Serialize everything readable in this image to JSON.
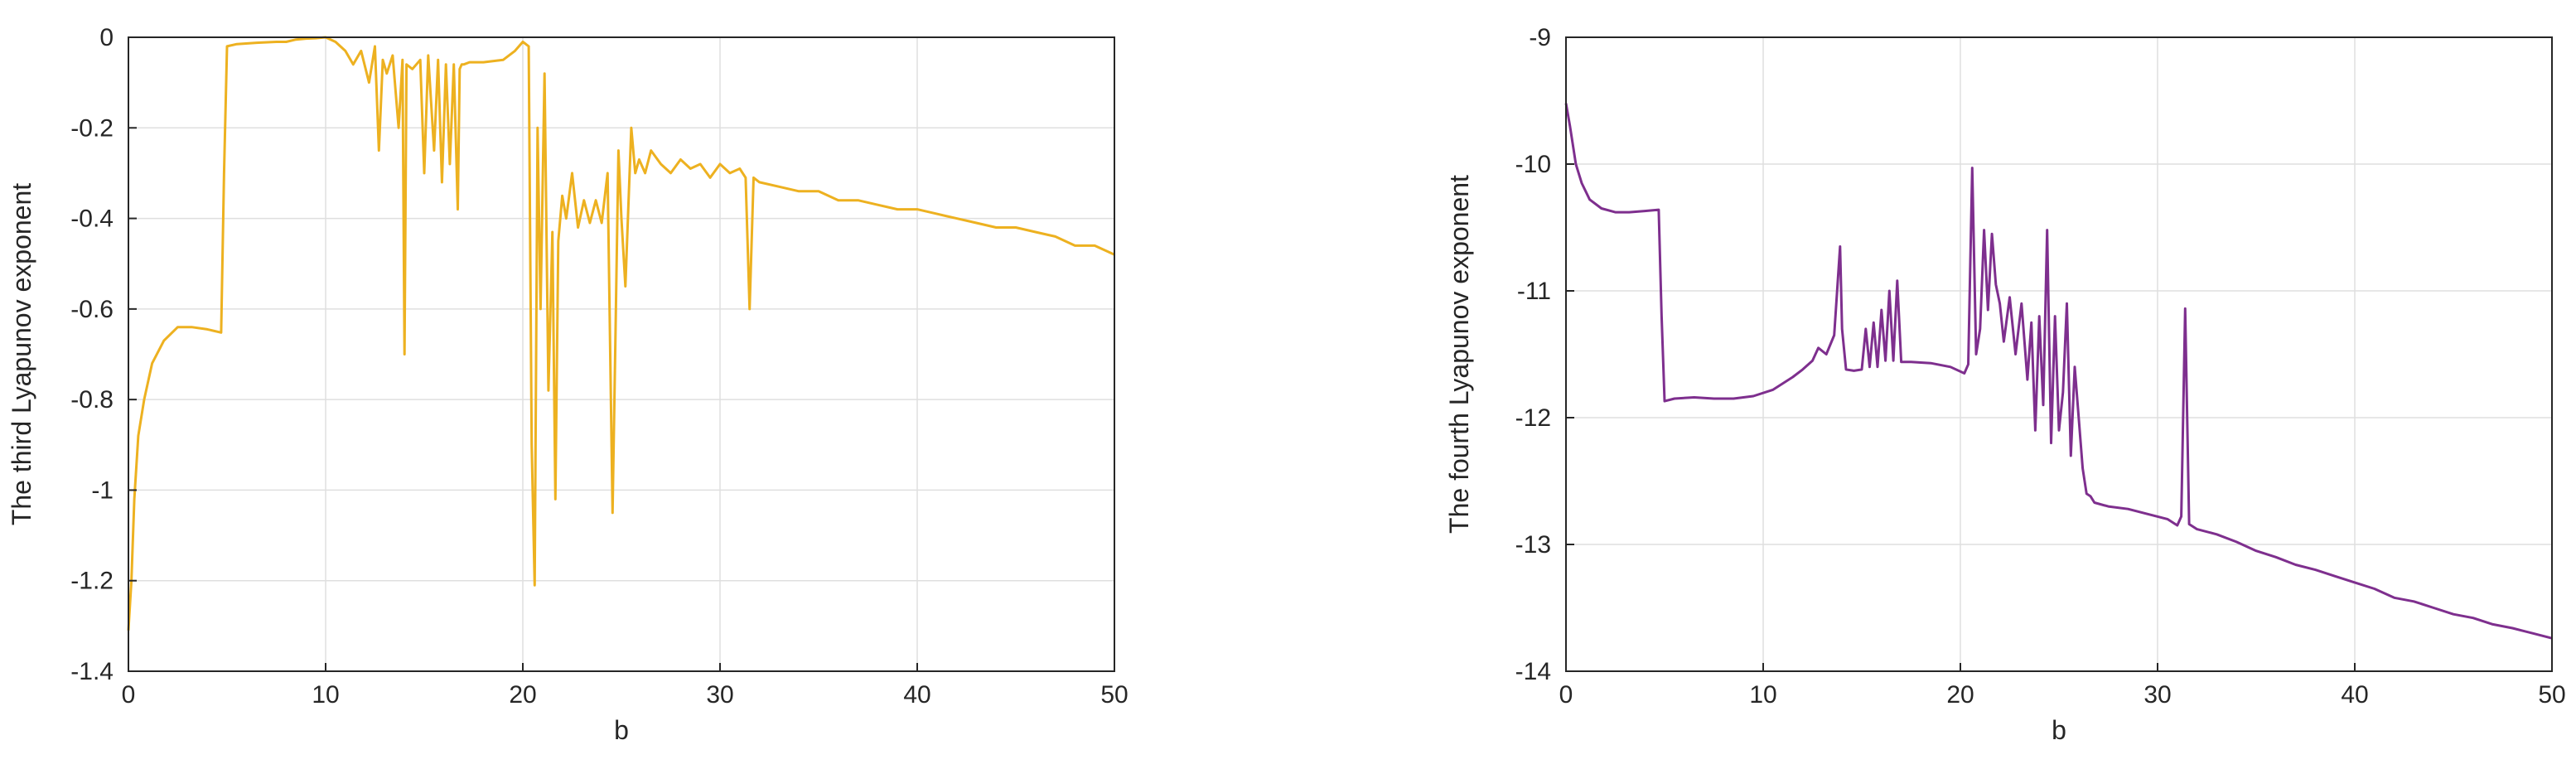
{
  "chart_data": [
    {
      "type": "line",
      "title": "",
      "xlabel": "b",
      "ylabel": "The third Lyapunov exponent",
      "xlim": [
        0,
        50
      ],
      "ylim": [
        -1.4,
        0
      ],
      "xticks": [
        0,
        10,
        20,
        30,
        40,
        50
      ],
      "xtick_labels": [
        "0",
        "10",
        "20",
        "30",
        "40",
        "50"
      ],
      "yticks": [
        0,
        -0.2,
        -0.4,
        -0.6,
        -0.8,
        -1,
        -1.2,
        -1.4
      ],
      "ytick_labels": [
        "0",
        "-0.2",
        "-0.4",
        "-0.6",
        "-0.8",
        "-1",
        "-1.2",
        "-1.4"
      ],
      "grid": true,
      "color": "#EDB120",
      "series": [
        {
          "x": [
            0,
            0.15,
            0.3,
            0.5,
            0.8,
            1.2,
            1.8,
            2.5,
            3.2,
            4.0,
            4.7,
            4.85,
            5.0,
            5.5,
            6.5,
            7.5,
            8.0,
            8.5,
            9.0,
            9.5,
            10.0,
            10.5,
            11.0,
            11.4,
            11.8,
            12.2,
            12.5,
            12.7,
            12.9,
            13.1,
            13.4,
            13.7,
            13.9,
            14.0,
            14.1,
            14.4,
            14.8,
            15.0,
            15.2,
            15.5,
            15.7,
            15.9,
            16.1,
            16.3,
            16.5,
            16.7,
            16.8,
            16.9,
            17.0,
            17.3,
            18.0,
            19.0,
            19.6,
            20.0,
            20.3,
            20.45,
            20.6,
            20.75,
            20.9,
            21.1,
            21.3,
            21.5,
            21.65,
            21.8,
            22.0,
            22.2,
            22.5,
            22.8,
            23.1,
            23.4,
            23.7,
            24.0,
            24.3,
            24.55,
            24.7,
            24.85,
            25.0,
            25.2,
            25.5,
            25.7,
            25.9,
            26.2,
            26.5,
            27.0,
            27.5,
            28.0,
            28.5,
            29.0,
            29.5,
            30.0,
            30.5,
            31.0,
            31.3,
            31.5,
            31.7,
            32.0,
            33.0,
            34.0,
            35.0,
            36.0,
            37.0,
            38.0,
            39.0,
            40.0,
            41.0,
            42.0,
            43.0,
            44.0,
            45.0,
            46.0,
            47.0,
            48.0,
            49.0,
            50.0
          ],
          "y": [
            -1.31,
            -1.2,
            -1.02,
            -0.88,
            -0.8,
            -0.72,
            -0.67,
            -0.64,
            -0.64,
            -0.645,
            -0.652,
            -0.3,
            -0.02,
            -0.015,
            -0.012,
            -0.01,
            -0.01,
            -0.005,
            -0.003,
            -0.002,
            0,
            -0.01,
            -0.03,
            -0.06,
            -0.03,
            -0.1,
            -0.02,
            -0.25,
            -0.05,
            -0.08,
            -0.04,
            -0.2,
            -0.05,
            -0.7,
            -0.06,
            -0.07,
            -0.05,
            -0.3,
            -0.04,
            -0.25,
            -0.05,
            -0.32,
            -0.06,
            -0.28,
            -0.06,
            -0.38,
            -0.07,
            -0.06,
            -0.06,
            -0.055,
            -0.055,
            -0.05,
            -0.03,
            -0.01,
            -0.02,
            -0.9,
            -1.21,
            -0.2,
            -0.6,
            -0.08,
            -0.78,
            -0.43,
            -1.02,
            -0.45,
            -0.35,
            -0.4,
            -0.3,
            -0.42,
            -0.36,
            -0.41,
            -0.36,
            -0.41,
            -0.3,
            -1.05,
            -0.65,
            -0.25,
            -0.4,
            -0.55,
            -0.2,
            -0.3,
            -0.27,
            -0.3,
            -0.25,
            -0.28,
            -0.3,
            -0.27,
            -0.29,
            -0.28,
            -0.31,
            -0.28,
            -0.3,
            -0.29,
            -0.31,
            -0.6,
            -0.31,
            -0.32,
            -0.33,
            -0.34,
            -0.34,
            -0.36,
            -0.36,
            -0.37,
            -0.38,
            -0.38,
            -0.39,
            -0.4,
            -0.41,
            -0.42,
            -0.42,
            -0.43,
            -0.44,
            -0.46,
            -0.46,
            -0.48
          ]
        }
      ]
    },
    {
      "type": "line",
      "title": "",
      "xlabel": "b",
      "ylabel": "The fourth Lyapunov exponent",
      "xlim": [
        0,
        50
      ],
      "ylim": [
        -14,
        -9
      ],
      "xticks": [
        0,
        10,
        20,
        30,
        40,
        50
      ],
      "xtick_labels": [
        "0",
        "10",
        "20",
        "30",
        "40",
        "50"
      ],
      "yticks": [
        -9,
        -10,
        -11,
        -12,
        -13,
        -14
      ],
      "ytick_labels": [
        "-9",
        "-10",
        "-11",
        "-12",
        "-13",
        "-14"
      ],
      "grid": true,
      "color": "#7E2F8E",
      "series": [
        {
          "x": [
            0,
            0.2,
            0.5,
            0.8,
            1.2,
            1.8,
            2.5,
            3.2,
            4.0,
            4.7,
            4.85,
            5.0,
            5.5,
            6.5,
            7.5,
            8.5,
            9.5,
            10.5,
            11.5,
            12.0,
            12.5,
            12.8,
            13.2,
            13.6,
            13.9,
            14.0,
            14.2,
            14.6,
            15.0,
            15.2,
            15.4,
            15.6,
            15.8,
            16.0,
            16.2,
            16.4,
            16.6,
            16.8,
            17.0,
            17.5,
            18.5,
            19.5,
            20.2,
            20.4,
            20.6,
            20.8,
            21.0,
            21.2,
            21.4,
            21.6,
            21.8,
            22.0,
            22.2,
            22.5,
            22.8,
            23.1,
            23.4,
            23.6,
            23.8,
            24.0,
            24.2,
            24.4,
            24.6,
            24.8,
            25.0,
            25.2,
            25.4,
            25.6,
            25.8,
            26.0,
            26.2,
            26.4,
            26.6,
            26.8,
            27.5,
            28.5,
            29.5,
            30.5,
            31.0,
            31.2,
            31.4,
            31.6,
            32.0,
            33.0,
            34.0,
            35.0,
            36.0,
            37.0,
            38.0,
            39.0,
            40.0,
            41.0,
            42.0,
            43.0,
            44.0,
            45.0,
            46.0,
            47.0,
            48.0,
            49.0,
            50.0
          ],
          "y": [
            -9.52,
            -9.7,
            -10.0,
            -10.15,
            -10.28,
            -10.35,
            -10.38,
            -10.38,
            -10.37,
            -10.36,
            -11.2,
            -11.87,
            -11.85,
            -11.84,
            -11.85,
            -11.85,
            -11.83,
            -11.78,
            -11.68,
            -11.62,
            -11.55,
            -11.45,
            -11.5,
            -11.35,
            -10.65,
            -11.3,
            -11.62,
            -11.63,
            -11.62,
            -11.3,
            -11.6,
            -11.25,
            -11.6,
            -11.15,
            -11.55,
            -11.0,
            -11.55,
            -10.92,
            -11.56,
            -11.56,
            -11.57,
            -11.6,
            -11.65,
            -11.58,
            -10.03,
            -11.5,
            -11.3,
            -10.52,
            -11.15,
            -10.55,
            -10.95,
            -11.1,
            -11.4,
            -11.05,
            -11.5,
            -11.1,
            -11.7,
            -11.25,
            -12.1,
            -11.2,
            -11.9,
            -10.52,
            -12.2,
            -11.2,
            -12.1,
            -11.8,
            -11.1,
            -12.3,
            -11.6,
            -12.0,
            -12.4,
            -12.6,
            -12.62,
            -12.67,
            -12.7,
            -12.72,
            -12.76,
            -12.8,
            -12.85,
            -12.78,
            -11.14,
            -12.84,
            -12.88,
            -12.92,
            -12.98,
            -13.05,
            -13.1,
            -13.16,
            -13.2,
            -13.25,
            -13.3,
            -13.35,
            -13.42,
            -13.45,
            -13.5,
            -13.55,
            -13.58,
            -13.63,
            -13.66,
            -13.7,
            -13.74
          ]
        }
      ]
    }
  ]
}
